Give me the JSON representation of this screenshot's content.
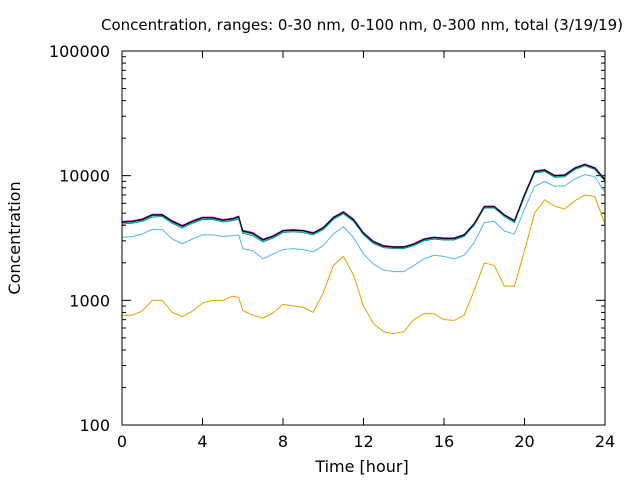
{
  "chart_data": {
    "type": "line",
    "title": "Concentration, ranges: 0-30 nm, 0-100 nm, 0-300 nm, total (3/19/19)",
    "xlabel": "Time [hour]",
    "ylabel": "Concentration",
    "xlim": [
      0,
      24
    ],
    "ylim": [
      100,
      100000
    ],
    "yscale": "log",
    "grid": false,
    "legend": "none",
    "x_ticks": [
      {
        "value": 0,
        "label": "0"
      },
      {
        "value": 4,
        "label": "4"
      },
      {
        "value": 8,
        "label": "8"
      },
      {
        "value": 12,
        "label": "12"
      },
      {
        "value": 16,
        "label": "16"
      },
      {
        "value": 20,
        "label": "20"
      },
      {
        "value": 24,
        "label": "24"
      }
    ],
    "y_ticks": [
      {
        "value": 100,
        "label": "100"
      },
      {
        "value": 1000,
        "label": "1000"
      },
      {
        "value": 10000,
        "label": "10000"
      },
      {
        "value": 100000,
        "label": "100000"
      }
    ],
    "x": [
      0,
      0.5,
      1,
      1.5,
      2,
      2.5,
      3,
      3.5,
      4,
      4.5,
      5,
      5.5,
      5.8,
      6,
      6.5,
      7,
      7.5,
      8,
      8.5,
      9,
      9.5,
      10,
      10.5,
      11,
      11.5,
      12,
      12.5,
      13,
      13.5,
      14,
      14.5,
      15,
      15.5,
      16,
      16.5,
      17,
      17.5,
      18,
      18.5,
      19,
      19.5,
      20,
      20.5,
      21,
      21.5,
      22,
      22.5,
      23,
      23.5,
      24
    ],
    "series": [
      {
        "color": "#e69f00",
        "values": [
          760,
          760,
          820,
          1000,
          1000,
          800,
          740,
          820,
          950,
          1000,
          1000,
          1080,
          1050,
          830,
          760,
          720,
          790,
          930,
          900,
          880,
          800,
          1150,
          1900,
          2250,
          1600,
          900,
          650,
          560,
          540,
          560,
          700,
          780,
          780,
          700,
          690,
          760,
          1200,
          2000,
          1900,
          1300,
          1300,
          2500,
          5000,
          6400,
          5700,
          5400,
          6300,
          7000,
          6800,
          4100
        ]
      },
      {
        "color": "#56b4e9",
        "values": [
          3200,
          3250,
          3400,
          3700,
          3700,
          3100,
          2850,
          3100,
          3350,
          3350,
          3250,
          3300,
          3350,
          2600,
          2500,
          2150,
          2350,
          2550,
          2600,
          2550,
          2450,
          2750,
          3400,
          3900,
          3200,
          2350,
          1950,
          1750,
          1700,
          1700,
          1900,
          2150,
          2300,
          2250,
          2150,
          2300,
          2900,
          4200,
          4300,
          3600,
          3400,
          5400,
          8200,
          9000,
          8200,
          8300,
          9400,
          10200,
          9800,
          7300
        ]
      },
      {
        "color": "#009e73",
        "values": [
          4100,
          4150,
          4300,
          4650,
          4700,
          4150,
          3800,
          4150,
          4450,
          4450,
          4250,
          4350,
          4500,
          3450,
          3300,
          2950,
          3150,
          3500,
          3550,
          3500,
          3350,
          3700,
          4450,
          4950,
          4300,
          3350,
          2850,
          2650,
          2600,
          2600,
          2750,
          3000,
          3100,
          3050,
          3050,
          3250,
          4000,
          5500,
          5500,
          4700,
          4200,
          6800,
          10500,
          10800,
          9700,
          9800,
          11200,
          12000,
          11200,
          9000
        ]
      },
      {
        "color": "#0072b2",
        "values": [
          4200,
          4250,
          4400,
          4780,
          4800,
          4250,
          3900,
          4250,
          4550,
          4550,
          4350,
          4450,
          4620,
          3550,
          3400,
          3020,
          3230,
          3580,
          3630,
          3580,
          3430,
          3780,
          4550,
          5050,
          4400,
          3430,
          2920,
          2700,
          2650,
          2650,
          2800,
          3060,
          3160,
          3110,
          3110,
          3320,
          4080,
          5600,
          5600,
          4800,
          4300,
          6950,
          10700,
          11000,
          9900,
          10000,
          11400,
          12200,
          11400,
          9200
        ]
      },
      {
        "color": "#cc00cc",
        "values": [
          4300,
          4350,
          4500,
          4900,
          4900,
          4350,
          4000,
          4350,
          4650,
          4650,
          4450,
          4550,
          4750,
          3650,
          3500,
          3100,
          3300,
          3650,
          3700,
          3650,
          3500,
          3850,
          4650,
          5150,
          4500,
          3500,
          2980,
          2750,
          2700,
          2700,
          2850,
          3120,
          3220,
          3170,
          3170,
          3380,
          4150,
          5700,
          5700,
          4880,
          4380,
          7100,
          10900,
          11200,
          10100,
          10200,
          11600,
          12400,
          11600,
          9400
        ]
      },
      {
        "color": "#000000",
        "values": [
          4250,
          4300,
          4450,
          4850,
          4850,
          4300,
          3950,
          4300,
          4600,
          4600,
          4400,
          4500,
          4700,
          3600,
          3450,
          3060,
          3260,
          3620,
          3660,
          3620,
          3460,
          3820,
          4600,
          5100,
          4450,
          3460,
          2950,
          2720,
          2680,
          2680,
          2820,
          3090,
          3190,
          3140,
          3140,
          3350,
          4120,
          5650,
          5650,
          4840,
          4340,
          7020,
          10800,
          11100,
          10000,
          10100,
          11500,
          12300,
          11500,
          9300
        ]
      }
    ]
  }
}
